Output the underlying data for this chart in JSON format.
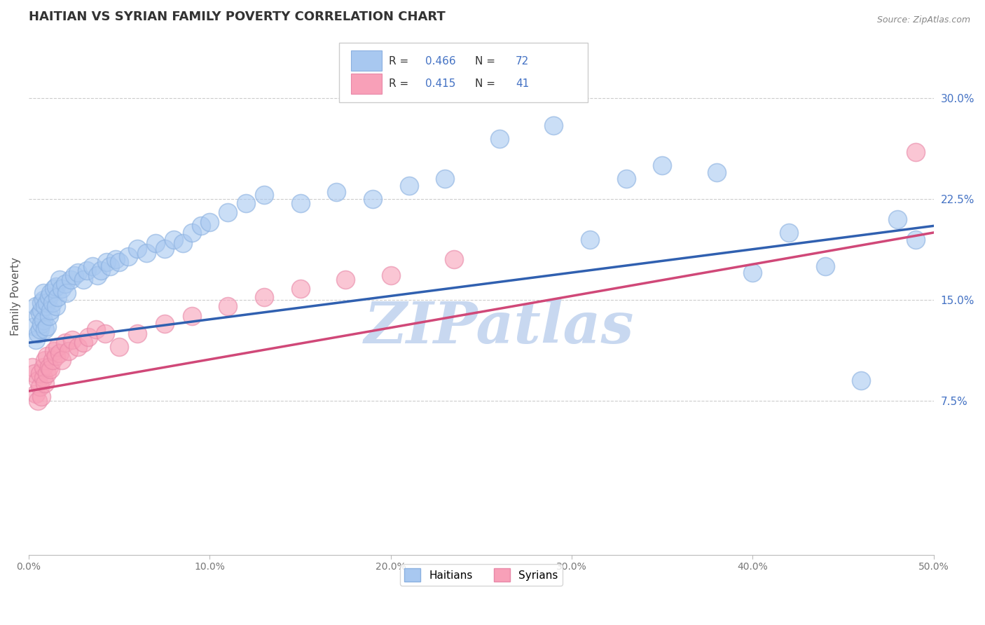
{
  "title": "HAITIAN VS SYRIAN FAMILY POVERTY CORRELATION CHART",
  "title_fontsize": 13,
  "title_color": "#333333",
  "ylabel": "Family Poverty",
  "source_text": "Source: ZipAtlas.com",
  "watermark": "ZIPatlas",
  "xlim": [
    0.0,
    0.5
  ],
  "ylim": [
    -0.04,
    0.345
  ],
  "xticks": [
    0.0,
    0.1,
    0.2,
    0.3,
    0.4,
    0.5
  ],
  "yticks": [
    0.075,
    0.15,
    0.225,
    0.3
  ],
  "ytick_labels": [
    "7.5%",
    "15.0%",
    "22.5%",
    "30.0%"
  ],
  "xtick_labels": [
    "0.0%",
    "10.0%",
    "20.0%",
    "30.0%",
    "40.0%",
    "50.0%"
  ],
  "haitian_color": "#a8c8f0",
  "haitian_edge_color": "#8ab0e0",
  "haitian_line_color": "#3060b0",
  "syrian_color": "#f8a0b8",
  "syrian_edge_color": "#e888a8",
  "syrian_line_color": "#d04878",
  "haitian_R": 0.466,
  "haitian_N": 72,
  "syrian_R": 0.415,
  "syrian_N": 41,
  "haitian_x": [
    0.003,
    0.004,
    0.004,
    0.005,
    0.005,
    0.006,
    0.006,
    0.007,
    0.007,
    0.007,
    0.008,
    0.008,
    0.008,
    0.009,
    0.009,
    0.01,
    0.01,
    0.011,
    0.011,
    0.012,
    0.012,
    0.013,
    0.014,
    0.015,
    0.015,
    0.016,
    0.017,
    0.018,
    0.02,
    0.021,
    0.023,
    0.025,
    0.027,
    0.03,
    0.032,
    0.035,
    0.038,
    0.04,
    0.043,
    0.045,
    0.048,
    0.05,
    0.055,
    0.06,
    0.065,
    0.07,
    0.075,
    0.08,
    0.085,
    0.09,
    0.095,
    0.1,
    0.11,
    0.12,
    0.13,
    0.15,
    0.17,
    0.19,
    0.21,
    0.23,
    0.26,
    0.29,
    0.31,
    0.33,
    0.35,
    0.38,
    0.4,
    0.42,
    0.44,
    0.46,
    0.48,
    0.49
  ],
  "haitian_y": [
    0.13,
    0.12,
    0.145,
    0.125,
    0.138,
    0.128,
    0.14,
    0.132,
    0.142,
    0.148,
    0.135,
    0.15,
    0.155,
    0.128,
    0.145,
    0.13,
    0.148,
    0.138,
    0.152,
    0.142,
    0.155,
    0.148,
    0.158,
    0.145,
    0.16,
    0.152,
    0.165,
    0.158,
    0.162,
    0.155,
    0.165,
    0.168,
    0.17,
    0.165,
    0.172,
    0.175,
    0.168,
    0.172,
    0.178,
    0.175,
    0.18,
    0.178,
    0.182,
    0.188,
    0.185,
    0.192,
    0.188,
    0.195,
    0.192,
    0.2,
    0.205,
    0.208,
    0.215,
    0.222,
    0.228,
    0.222,
    0.23,
    0.225,
    0.235,
    0.24,
    0.27,
    0.28,
    0.195,
    0.24,
    0.25,
    0.245,
    0.17,
    0.2,
    0.175,
    0.09,
    0.21,
    0.195
  ],
  "syrian_x": [
    0.002,
    0.003,
    0.004,
    0.005,
    0.005,
    0.006,
    0.006,
    0.007,
    0.008,
    0.008,
    0.009,
    0.009,
    0.01,
    0.01,
    0.011,
    0.012,
    0.013,
    0.014,
    0.015,
    0.016,
    0.017,
    0.018,
    0.02,
    0.022,
    0.024,
    0.027,
    0.03,
    0.033,
    0.037,
    0.042,
    0.05,
    0.06,
    0.075,
    0.09,
    0.11,
    0.13,
    0.15,
    0.175,
    0.2,
    0.235,
    0.49
  ],
  "syrian_y": [
    0.1,
    0.095,
    0.08,
    0.075,
    0.09,
    0.085,
    0.095,
    0.078,
    0.092,
    0.1,
    0.088,
    0.105,
    0.095,
    0.108,
    0.1,
    0.098,
    0.105,
    0.112,
    0.108,
    0.115,
    0.11,
    0.105,
    0.118,
    0.112,
    0.12,
    0.115,
    0.118,
    0.122,
    0.128,
    0.125,
    0.115,
    0.125,
    0.132,
    0.138,
    0.145,
    0.152,
    0.158,
    0.165,
    0.168,
    0.18,
    0.26
  ],
  "background_color": "#ffffff",
  "grid_color": "#cccccc",
  "watermark_color": "#c8d8f0",
  "watermark_fontsize": 60,
  "haitian_line_x0": 0.0,
  "haitian_line_y0": 0.118,
  "haitian_line_x1": 0.5,
  "haitian_line_y1": 0.205,
  "syrian_line_x0": 0.0,
  "syrian_line_y0": 0.082,
  "syrian_line_x1": 0.5,
  "syrian_line_y1": 0.2
}
